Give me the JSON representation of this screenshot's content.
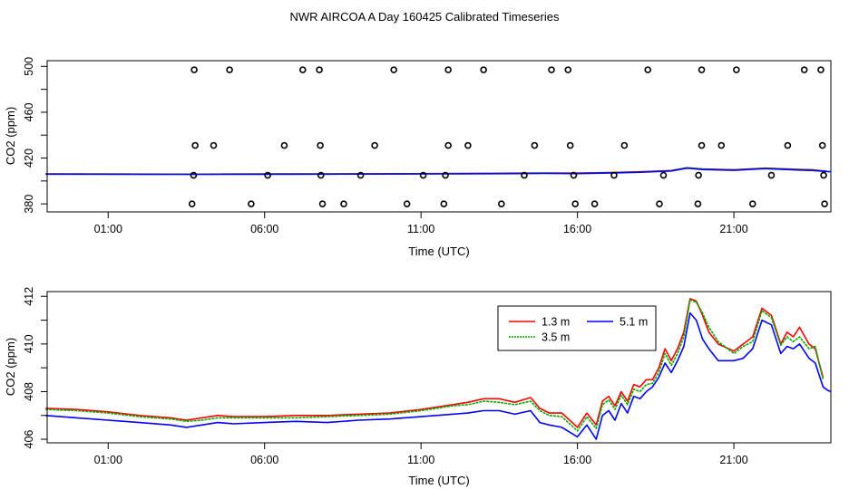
{
  "figure_title": "NWR AIRCOA A  Day 160425  Calibrated Timeseries",
  "chart_data": [
    {
      "type": "scatter",
      "name": "top-panel",
      "title": "NWR AIRCOA A  Day 160425  Calibrated Timeseries",
      "xlabel": "Time (UTC)",
      "ylabel": "CO2 (ppm)",
      "xlim": [
        -0.95,
        24.1
      ],
      "ylim": [
        373,
        505
      ],
      "x_ticks": [
        1,
        6,
        11,
        16,
        21
      ],
      "x_tick_labels": [
        "01:00",
        "06:00",
        "11:00",
        "16:00",
        "21:00"
      ],
      "y_ticks": [
        380,
        400,
        420,
        440,
        460,
        480,
        500
      ],
      "y_tick_labels": [
        "380",
        "",
        "420",
        "",
        "460",
        "",
        "500"
      ],
      "points_x": [
        3.75,
        4.88,
        7.22,
        7.75,
        10.13,
        11.87,
        13.0,
        15.17,
        15.7,
        18.25,
        19.97,
        21.08,
        23.25,
        23.78,
        3.78,
        4.37,
        6.63,
        7.78,
        9.52,
        11.87,
        12.5,
        14.63,
        15.77,
        17.5,
        19.97,
        20.6,
        22.72,
        23.83,
        3.73,
        6.1,
        7.8,
        9.07,
        11.07,
        11.78,
        14.3,
        15.88,
        17.17,
        18.75,
        19.87,
        22.2,
        23.87,
        3.68,
        5.57,
        7.85,
        8.53,
        10.55,
        11.73,
        13.57,
        15.93,
        16.55,
        18.62,
        19.85,
        21.6,
        23.9
      ],
      "points_y": [
        497,
        497,
        497,
        497,
        497,
        497,
        497,
        497,
        497,
        497,
        497,
        497,
        497,
        497,
        431,
        431,
        431,
        431,
        431,
        431,
        431,
        431,
        431,
        431,
        431,
        431,
        431,
        431,
        405,
        405,
        405,
        405,
        405,
        405,
        405,
        405,
        405,
        405,
        405,
        405,
        405,
        380,
        380,
        380,
        380,
        380,
        380,
        380,
        380,
        380,
        380,
        380,
        380,
        380
      ],
      "series": [
        {
          "name": "1.3 m",
          "color": "#ff0000",
          "x": [
            -1,
            3.5,
            4.0,
            6.0,
            8.0,
            10.0,
            12.0,
            14.0,
            15.0,
            16.0,
            17.0,
            18.0,
            19.0,
            19.5,
            20.0,
            21.0,
            22.0,
            23.0,
            23.5,
            23.95
          ],
          "values": [
            406.2,
            406.0,
            406.0,
            406.1,
            406.2,
            406.3,
            406.5,
            406.8,
            407.0,
            406.9,
            407.4,
            408.0,
            409.1,
            411.5,
            410.5,
            409.8,
            411.2,
            410.2,
            409.8,
            408.5
          ]
        },
        {
          "name": "3.5 m",
          "color": "#00aa00",
          "x": [
            -1,
            3.5,
            4.0,
            6.0,
            8.0,
            10.0,
            12.0,
            14.0,
            15.0,
            16.0,
            17.0,
            18.0,
            19.0,
            19.5,
            20.0,
            21.0,
            22.0,
            23.0,
            23.5,
            23.95
          ],
          "values": [
            406.2,
            405.9,
            406.0,
            406.1,
            406.1,
            406.2,
            406.4,
            406.7,
            406.9,
            406.7,
            407.2,
            407.8,
            409.0,
            411.6,
            410.4,
            409.6,
            411.1,
            410.0,
            409.6,
            408.5
          ]
        },
        {
          "name": "5.1 m",
          "color": "#0000ff",
          "x": [
            -1,
            3.5,
            4.0,
            6.0,
            8.0,
            10.0,
            12.0,
            14.0,
            15.0,
            16.0,
            17.0,
            18.0,
            19.0,
            19.5,
            20.0,
            21.0,
            22.0,
            23.0,
            23.5,
            24.1
          ],
          "values": [
            406.0,
            405.8,
            405.8,
            405.9,
            406.0,
            406.1,
            406.2,
            406.4,
            406.6,
            406.4,
            406.9,
            407.6,
            408.7,
            411.2,
            410.0,
            409.3,
            410.8,
            409.6,
            409.2,
            408.0
          ]
        }
      ]
    },
    {
      "type": "line",
      "name": "bottom-panel",
      "xlabel": "Time (UTC)",
      "ylabel": "CO2 (ppm)",
      "xlim": [
        -0.95,
        24.1
      ],
      "ylim": [
        405.85,
        412.2
      ],
      "x_ticks": [
        1,
        6,
        11,
        16,
        21
      ],
      "x_tick_labels": [
        "01:00",
        "06:00",
        "11:00",
        "16:00",
        "21:00"
      ],
      "y_ticks": [
        406,
        407,
        408,
        409,
        410,
        411,
        412
      ],
      "y_tick_labels": [
        "406",
        "",
        "408",
        "",
        "410",
        "",
        "412"
      ],
      "legend": {
        "placement": "top-right",
        "entries": [
          "1.3 m",
          "3.5 m",
          "5.1 m"
        ]
      },
      "series": [
        {
          "name": "1.3 m",
          "color": "#ff0000",
          "x": [
            -1,
            0,
            1,
            2,
            3,
            3.5,
            4,
            4.5,
            5,
            6,
            7,
            8,
            9,
            10,
            11,
            12,
            12.5,
            13,
            13.5,
            14,
            14.5,
            14.8,
            15.1,
            15.5,
            16.0,
            16.3,
            16.6,
            16.8,
            17.0,
            17.2,
            17.4,
            17.6,
            17.8,
            18.0,
            18.2,
            18.4,
            18.6,
            18.8,
            19.0,
            19.2,
            19.4,
            19.6,
            19.8,
            20.0,
            20.2,
            20.5,
            21.0,
            21.3,
            21.6,
            21.9,
            22.2,
            22.5,
            22.7,
            22.9,
            23.1,
            23.4,
            23.6,
            23.85
          ],
          "values": [
            407.3,
            407.25,
            407.15,
            407.0,
            406.9,
            406.8,
            406.9,
            407.0,
            406.95,
            406.95,
            407.0,
            407.0,
            407.05,
            407.1,
            407.25,
            407.45,
            407.55,
            407.7,
            407.7,
            407.55,
            407.75,
            407.3,
            407.1,
            407.1,
            406.5,
            407.1,
            406.6,
            407.6,
            407.8,
            407.4,
            408.0,
            407.6,
            408.3,
            408.2,
            408.5,
            408.5,
            409.0,
            409.8,
            409.3,
            409.8,
            410.5,
            411.9,
            411.8,
            411.2,
            410.5,
            410.0,
            409.7,
            410.0,
            410.3,
            411.5,
            411.2,
            410.0,
            410.5,
            410.3,
            410.7,
            410.0,
            409.8,
            408.6
          ]
        },
        {
          "name": "3.5 m",
          "color": "#00aa00",
          "x": [
            -1,
            0,
            1,
            2,
            3,
            3.5,
            4,
            4.5,
            5,
            6,
            7,
            8,
            9,
            10,
            11,
            12,
            12.5,
            13,
            13.5,
            14,
            14.5,
            14.8,
            15.1,
            15.5,
            16.0,
            16.3,
            16.6,
            16.8,
            17.0,
            17.2,
            17.4,
            17.6,
            17.8,
            18.0,
            18.2,
            18.4,
            18.6,
            18.8,
            19.0,
            19.2,
            19.4,
            19.6,
            19.8,
            20.0,
            20.2,
            20.5,
            21.0,
            21.3,
            21.6,
            21.9,
            22.2,
            22.5,
            22.7,
            22.9,
            23.1,
            23.4,
            23.6,
            23.85
          ],
          "values": [
            407.25,
            407.2,
            407.1,
            406.95,
            406.85,
            406.75,
            406.8,
            406.9,
            406.9,
            406.9,
            406.9,
            406.95,
            407.0,
            407.05,
            407.2,
            407.4,
            407.45,
            407.6,
            407.55,
            407.45,
            407.6,
            407.2,
            407.0,
            406.95,
            406.35,
            406.95,
            406.45,
            407.45,
            407.65,
            407.25,
            407.85,
            407.45,
            408.1,
            408.0,
            408.3,
            408.35,
            408.8,
            409.6,
            409.1,
            409.6,
            410.3,
            411.85,
            411.75,
            411.3,
            410.7,
            410.1,
            409.6,
            409.9,
            410.1,
            411.4,
            411.1,
            409.95,
            410.3,
            410.1,
            410.3,
            409.8,
            409.9,
            408.5
          ]
        },
        {
          "name": "5.1 m",
          "color": "#0000ff",
          "x": [
            -1,
            0,
            1,
            2,
            3,
            3.5,
            4,
            4.5,
            5,
            6,
            7,
            8,
            9,
            10,
            11,
            12,
            12.5,
            13,
            13.5,
            14,
            14.5,
            14.8,
            15.1,
            15.5,
            16.0,
            16.3,
            16.6,
            16.8,
            17.0,
            17.2,
            17.4,
            17.6,
            17.8,
            18.0,
            18.2,
            18.4,
            18.6,
            18.8,
            19.0,
            19.2,
            19.4,
            19.6,
            19.8,
            20.0,
            20.2,
            20.5,
            21.0,
            21.3,
            21.6,
            21.9,
            22.2,
            22.5,
            22.7,
            22.9,
            23.1,
            23.4,
            23.6,
            23.85,
            24.0,
            24.1
          ],
          "values": [
            407.0,
            406.9,
            406.8,
            406.7,
            406.6,
            406.5,
            406.6,
            406.7,
            406.65,
            406.7,
            406.75,
            406.7,
            406.8,
            406.85,
            406.95,
            407.05,
            407.1,
            407.2,
            407.2,
            407.05,
            407.2,
            406.7,
            406.6,
            406.5,
            406.1,
            406.6,
            406.0,
            407.0,
            407.2,
            406.8,
            407.5,
            407.1,
            407.8,
            407.7,
            408.0,
            408.2,
            408.6,
            409.2,
            408.8,
            409.3,
            409.9,
            411.3,
            411.0,
            410.2,
            409.8,
            409.3,
            409.3,
            409.4,
            409.8,
            411.0,
            410.8,
            409.6,
            409.9,
            409.8,
            410.0,
            409.4,
            409.2,
            408.2,
            408.05,
            408.0
          ]
        }
      ]
    }
  ]
}
